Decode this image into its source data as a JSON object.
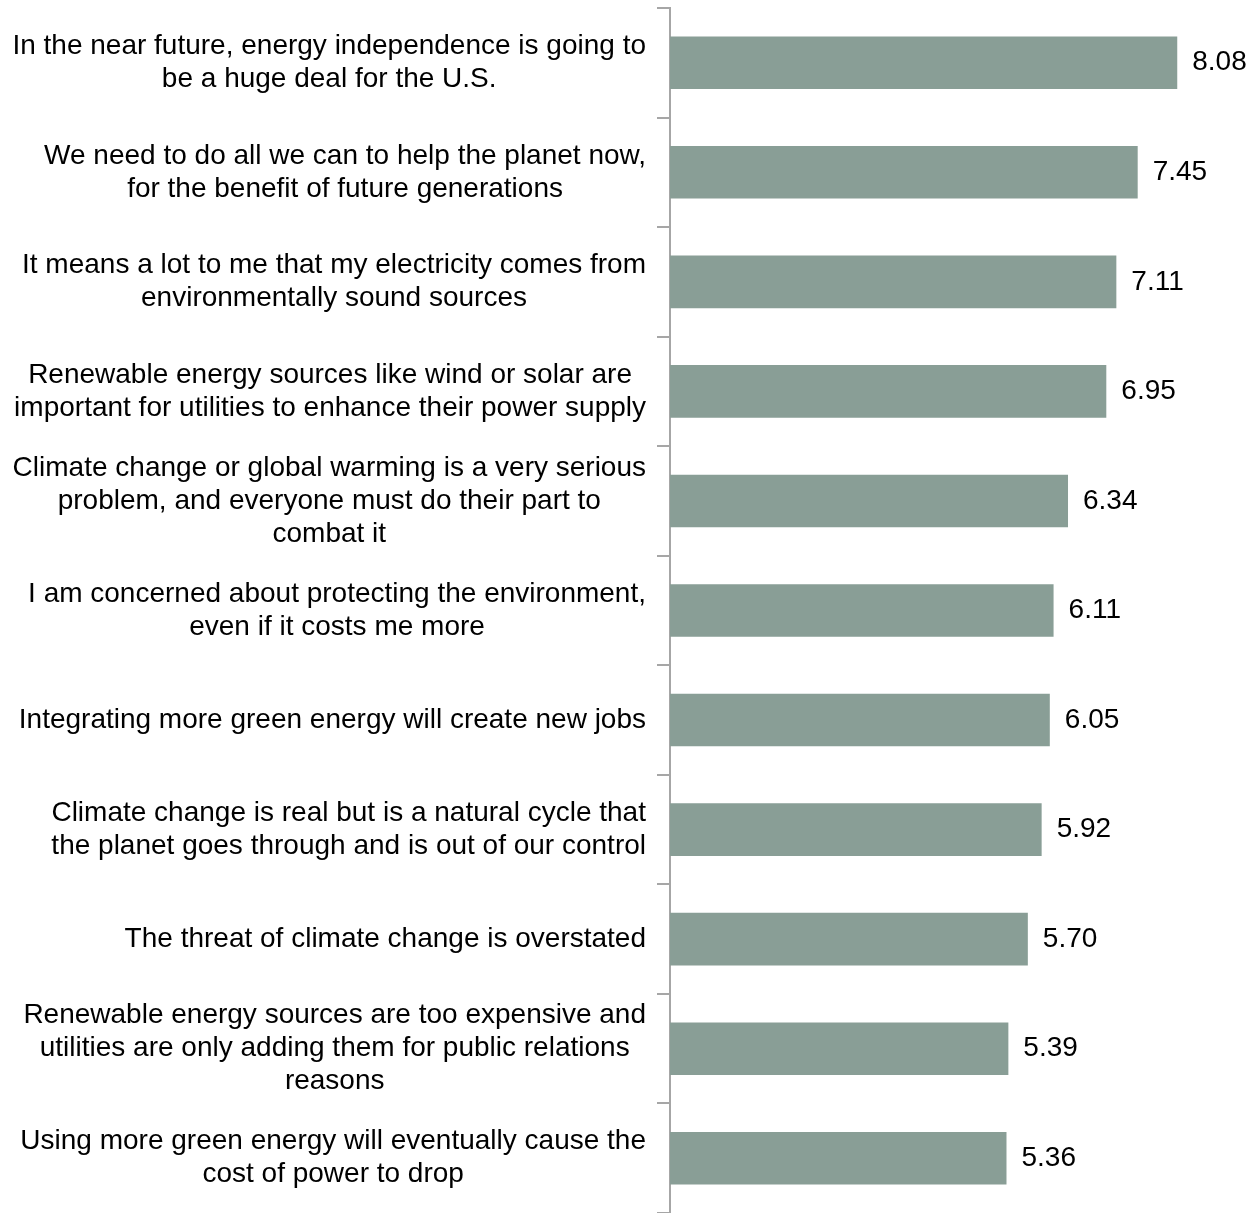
{
  "chart_data": {
    "type": "bar",
    "orientation": "horizontal",
    "categories": [
      "In the near future, energy independence is going to be a huge deal for the U.S.",
      "We need to do all we can to help the planet now, for the benefit of future generations",
      "It means a lot to me that my electricity comes from environmentally sound sources",
      "Renewable energy sources like wind or solar are important for utilities to enhance their power supply",
      "Climate change or global warming is a very serious problem, and everyone must do their part to combat it",
      "I am concerned about protecting the environment, even if it costs me more",
      "Integrating more green energy will create new jobs",
      "Climate change is real but is a natural cycle that the planet goes through and is out of our control",
      "The threat of climate change is overstated",
      "Renewable energy sources are too expensive and utilities are only adding them for public relations reasons",
      "Using more green energy will eventually cause the cost of power to drop"
    ],
    "values": [
      8.08,
      7.45,
      7.11,
      6.95,
      6.34,
      6.11,
      6.05,
      5.92,
      5.7,
      5.39,
      5.36
    ],
    "value_labels": [
      "8.08",
      "7.45",
      "7.11",
      "6.95",
      "6.34",
      "6.11",
      "6.05",
      "5.92",
      "5.70",
      "5.39",
      "5.36"
    ],
    "color": "#899e96",
    "tick_labels": "y"
  }
}
